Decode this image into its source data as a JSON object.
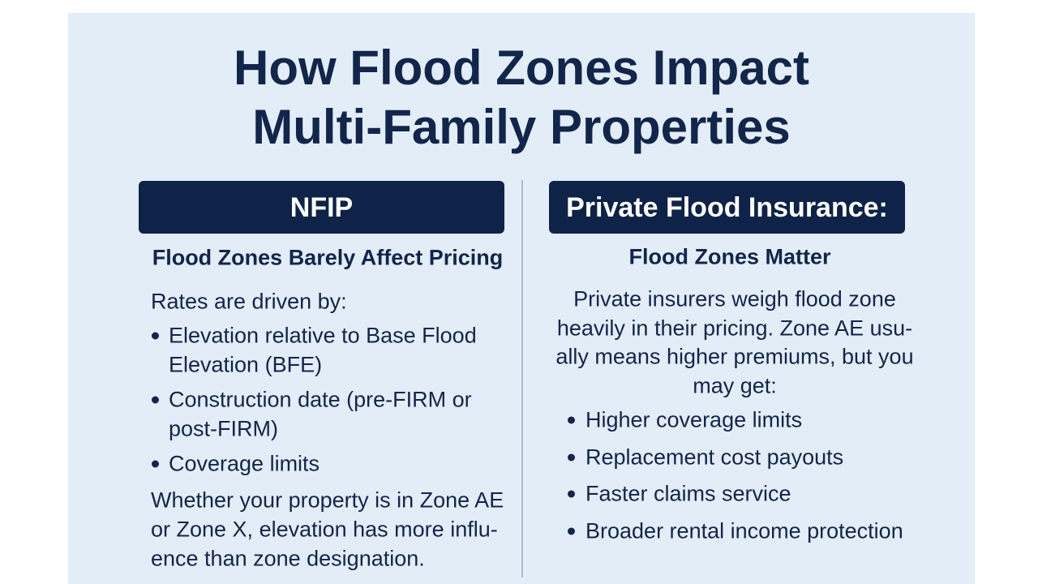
{
  "title": {
    "lines": [
      "How Flood Zones Impact",
      "Multi-Family Properties"
    ]
  },
  "left": {
    "header": "NFIP",
    "subtitle": "Flood Zones Barely Affect Pricing",
    "intro": [
      "Rates are driven by:"
    ],
    "bullets": [
      [
        "Elevation relative to Base Flood",
        "Elevation (BFE)"
      ],
      [
        "Construction date (pre-FIRM or",
        "post-FIRM)"
      ],
      [
        "Coverage limits"
      ]
    ],
    "outro": [
      "Whether your property is in Zone AE",
      "or Zone X, elevation has more influ-",
      "ence than zone designation."
    ]
  },
  "right": {
    "header": "Private Flood Insurance:",
    "subtitle": "Flood Zones Matter",
    "intro": [
      "Private insurers weigh flood zone",
      "heavily in their pricing. Zone AE usu-",
      "ally means higher premiums, but you",
      "may get:"
    ],
    "bullets": [
      [
        "Higher coverage limits"
      ],
      [
        "Replacement cost payouts"
      ],
      [
        "Faster claims service"
      ],
      [
        "Broader rental income protection"
      ]
    ]
  }
}
